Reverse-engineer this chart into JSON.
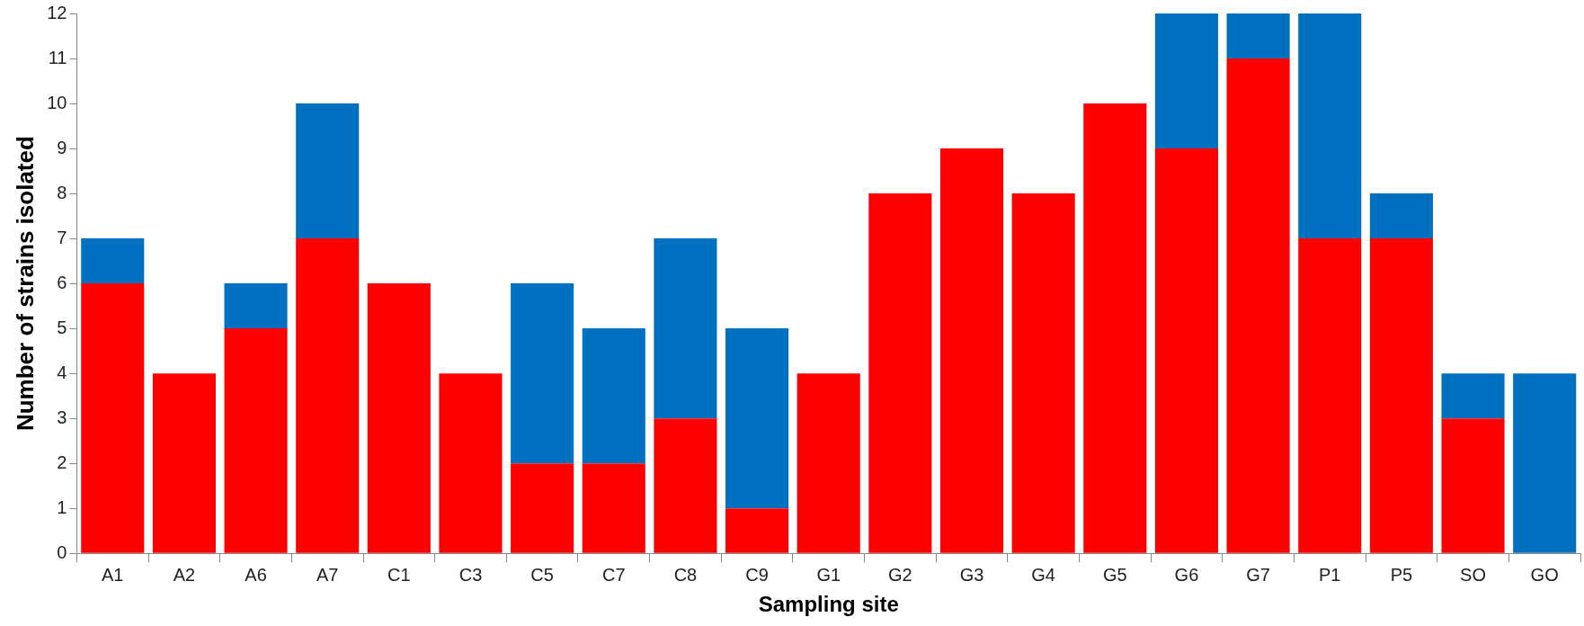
{
  "chart_data": {
    "type": "bar",
    "stacked": true,
    "xlabel": "Sampling site",
    "ylabel": "Number of strains isolated",
    "categories": [
      "A1",
      "A2",
      "A6",
      "A7",
      "C1",
      "C3",
      "C5",
      "C7",
      "C8",
      "C9",
      "G1",
      "G2",
      "G3",
      "G4",
      "G5",
      "G6",
      "G7",
      "P1",
      "P5",
      "SO",
      "GO"
    ],
    "series": [
      {
        "color": "#ff0000",
        "values": [
          6,
          4,
          5,
          7,
          6,
          4,
          2,
          2,
          3,
          1,
          4,
          8,
          9,
          8,
          10,
          9,
          11,
          7,
          7,
          3,
          0
        ]
      },
      {
        "color": "#0070c0",
        "values": [
          1,
          0,
          1,
          3,
          0,
          0,
          4,
          3,
          4,
          4,
          0,
          0,
          0,
          0,
          0,
          3,
          1,
          5,
          1,
          1,
          4
        ]
      }
    ],
    "ylim": [
      0,
      12
    ],
    "yticks": [
      0,
      1,
      2,
      3,
      4,
      5,
      6,
      7,
      8,
      9,
      10,
      11,
      12
    ],
    "grid": false,
    "legend": false
  }
}
